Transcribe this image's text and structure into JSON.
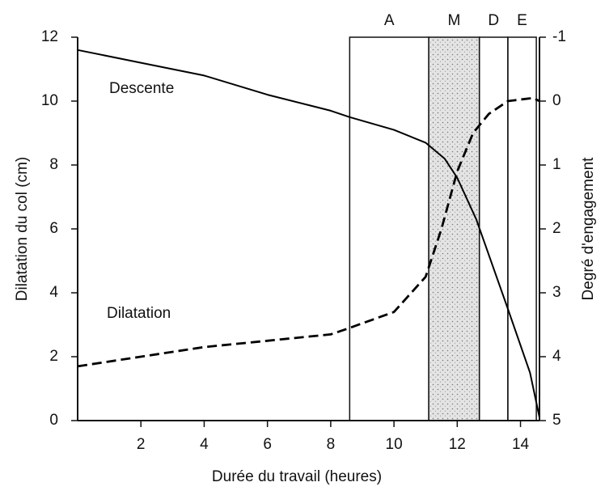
{
  "chart_data": {
    "type": "line",
    "xlabel": "Durée du travail (heures)",
    "ylabel": "Dilatation du col (cm)",
    "y2label": "Degré d'engagement",
    "xlim": [
      0,
      14.6
    ],
    "xticks": [
      2,
      4,
      6,
      8,
      10,
      12,
      14
    ],
    "ylim": [
      0,
      12
    ],
    "yticks": [
      0,
      2,
      4,
      6,
      8,
      10,
      12
    ],
    "y2lim": [
      5,
      -1
    ],
    "y2ticks": [
      -1,
      0,
      1,
      2,
      3,
      4,
      5
    ],
    "phases": [
      {
        "name": "A",
        "start": 8.6,
        "end": 11.1,
        "shaded": false
      },
      {
        "name": "M",
        "start": 11.1,
        "end": 12.7,
        "shaded": true
      },
      {
        "name": "D",
        "start": 12.7,
        "end": 13.6,
        "shaded": false
      },
      {
        "name": "E",
        "start": 13.6,
        "end": 14.5,
        "shaded": false
      }
    ],
    "series": [
      {
        "name": "Descente",
        "color": "#000000",
        "dash": false,
        "axis": "y2",
        "x": [
          0,
          2,
          4,
          6,
          8,
          8.6,
          10,
          11,
          11.6,
          12,
          12.6,
          13.6,
          14.3,
          14.6
        ],
        "values": [
          -0.8,
          -0.6,
          -0.4,
          -0.1,
          0.15,
          0.25,
          0.45,
          0.65,
          0.9,
          1.2,
          1.85,
          3.25,
          4.25,
          4.95
        ]
      },
      {
        "name": "Dilatation",
        "color": "#000000",
        "dash": true,
        "axis": "y",
        "x": [
          0,
          2,
          4,
          6,
          8,
          8.6,
          10,
          11,
          11.5,
          12,
          12.5,
          13,
          13.6,
          14.4,
          14.6
        ],
        "values": [
          1.7,
          2.0,
          2.3,
          2.5,
          2.7,
          2.9,
          3.4,
          4.5,
          6.0,
          7.8,
          9.0,
          9.6,
          10.0,
          10.1,
          10.0
        ]
      }
    ]
  }
}
